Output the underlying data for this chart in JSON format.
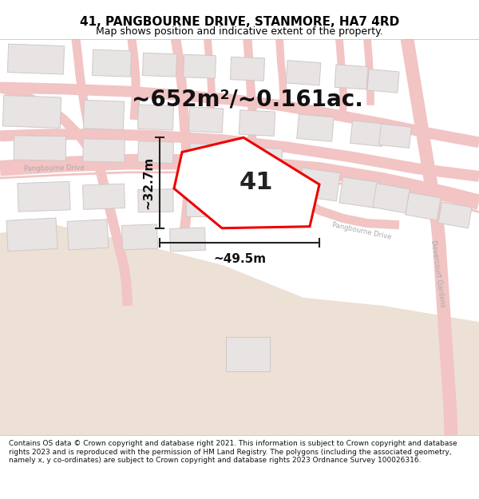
{
  "title": "41, PANGBOURNE DRIVE, STANMORE, HA7 4RD",
  "subtitle": "Map shows position and indicative extent of the property.",
  "area_text": "~652m²/~0.161ac.",
  "label_41": "41",
  "dim_height": "~32.7m",
  "dim_width": "~49.5m",
  "footer": "Contains OS data © Crown copyright and database right 2021. This information is subject to Crown copyright and database rights 2023 and is reproduced with the permission of HM Land Registry. The polygons (including the associated geometry, namely x, y co-ordinates) are subject to Crown copyright and database rights 2023 Ordnance Survey 100026316.",
  "bg_color": "#ffffff",
  "map_bg": "#faf7f7",
  "road_color": "#f2c4c4",
  "building_fill": "#e8e4e4",
  "building_edge": "#d0c8c8",
  "plot_edge_color": "#ee0000",
  "dim_line_color": "#222222",
  "road_label_color": "#aaaaaa",
  "beige_color": "#ede0d4",
  "title_fontsize": 11,
  "subtitle_fontsize": 9,
  "area_fontsize": 20,
  "label_fontsize": 22,
  "dim_fontsize": 11,
  "footer_fontsize": 6.5
}
